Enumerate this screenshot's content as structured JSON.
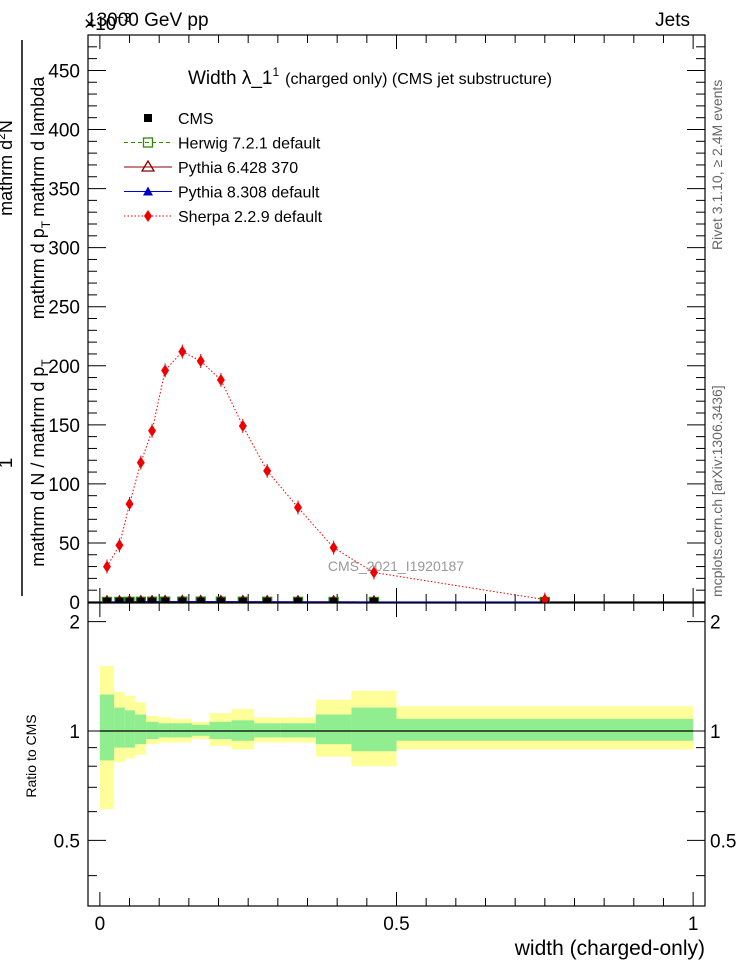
{
  "header": {
    "energy": "13000 GeV pp",
    "process": "Jets",
    "y_exponent": "×10",
    "y_exponent_power": "−3"
  },
  "side_labels": {
    "rivet": "Rivet 3.1.10, ≥ 2.4M events",
    "mcplots": "mcplots.cern.ch [arXiv:1306.3436]"
  },
  "main": {
    "title": "Width λ_1",
    "title_sup": "1",
    "title_suffix": "(charged only) (CMS jet substructure)",
    "ylabel_numerator": "1",
    "ylabel_denominator": "mathrm d N / mathrm d p",
    "ylabel_den_sub": "T",
    "ylabel_upper": "mathrm d",
    "ylabel_upper_sup": "2",
    "ylabel_upper_mid": "N",
    "ylabel_upper_line2": "mathrm d p",
    "ylabel_upper_line2_sub": "T",
    "ylabel_upper_line2_tail": "mathrm d lambda",
    "watermark": "CMS_2021_I1920187",
    "legend": [
      {
        "label": "CMS",
        "color": "#000000",
        "marker": "filled-square",
        "line": "none"
      },
      {
        "label": "Herwig 7.2.1 default",
        "color": "#2e8b00",
        "marker": "open-square",
        "line": "dashed"
      },
      {
        "label": "Pythia 6.428 370",
        "color": "#8b0000",
        "marker": "open-triangle",
        "line": "solid"
      },
      {
        "label": "Pythia 8.308 default",
        "color": "#0000cc",
        "marker": "filled-triangle",
        "line": "solid"
      },
      {
        "label": "Sherpa 2.2.9 default",
        "color": "#ee0000",
        "marker": "filled-diamond",
        "line": "dotted"
      }
    ]
  },
  "ratio": {
    "ylabel": "Ratio to CMS",
    "band_inner_color": "#90ee90",
    "band_outer_color": "#ffff99"
  },
  "xlabel": "width (charged-only)",
  "chart_data": [
    {
      "type": "line",
      "panel": "main",
      "xlim": [
        -0.02,
        1.02
      ],
      "ylim": [
        0,
        480
      ],
      "y_scale_note": "×10^-3",
      "xticks": [
        0,
        0.5,
        1
      ],
      "xtick_labels": [
        "0",
        "0.5",
        "1"
      ],
      "yticks": [
        0,
        50,
        100,
        150,
        200,
        250,
        300,
        350,
        400,
        450
      ],
      "ytick_labels": [
        "0",
        "50",
        "100",
        "150",
        "200",
        "250",
        "300",
        "350",
        "400",
        "450"
      ],
      "series": [
        {
          "name": "Sherpa 2.2.9 default",
          "x": [
            0.012,
            0.033,
            0.05,
            0.069,
            0.088,
            0.11,
            0.139,
            0.17,
            0.204,
            0.241,
            0.282,
            0.334,
            0.394,
            0.462,
            0.75
          ],
          "y": [
            30,
            48,
            83,
            118,
            145,
            196,
            212,
            204,
            188,
            149,
            111,
            80,
            46,
            25,
            2
          ]
        },
        {
          "name": "CMS",
          "x": [
            0.012,
            0.033,
            0.05,
            0.069,
            0.088,
            0.11,
            0.139,
            0.17,
            0.204,
            0.241,
            0.282,
            0.334,
            0.394,
            0.462,
            0.75
          ],
          "y": [
            0.05,
            0.08,
            0.13,
            0.18,
            0.22,
            0.29,
            0.31,
            0.3,
            0.28,
            0.22,
            0.16,
            0.12,
            0.07,
            0.04,
            0.003
          ]
        },
        {
          "name": "Herwig 7.2.1 default",
          "x": [
            0.012,
            0.033,
            0.05,
            0.069,
            0.088,
            0.11,
            0.139,
            0.17,
            0.204,
            0.241,
            0.282,
            0.334,
            0.394,
            0.462,
            0.75
          ],
          "y": [
            0.05,
            0.08,
            0.13,
            0.18,
            0.22,
            0.29,
            0.31,
            0.3,
            0.28,
            0.22,
            0.16,
            0.12,
            0.07,
            0.04,
            0.003
          ]
        },
        {
          "name": "Pythia 6.428 370",
          "x": [
            0.012,
            0.033,
            0.05,
            0.069,
            0.088,
            0.11,
            0.139,
            0.17,
            0.204,
            0.241,
            0.282,
            0.334,
            0.394,
            0.462,
            0.75
          ],
          "y": [
            0.05,
            0.08,
            0.13,
            0.18,
            0.22,
            0.29,
            0.31,
            0.3,
            0.28,
            0.22,
            0.16,
            0.12,
            0.07,
            0.04,
            0.003
          ]
        },
        {
          "name": "Pythia 8.308 default",
          "x": [
            0.012,
            0.033,
            0.05,
            0.069,
            0.088,
            0.11,
            0.139,
            0.17,
            0.204,
            0.241,
            0.282,
            0.334,
            0.394,
            0.462,
            0.75
          ],
          "y": [
            0.05,
            0.08,
            0.13,
            0.18,
            0.22,
            0.29,
            0.31,
            0.3,
            0.28,
            0.22,
            0.16,
            0.12,
            0.07,
            0.04,
            0.003
          ]
        }
      ]
    },
    {
      "type": "area",
      "panel": "ratio",
      "xlim": [
        -0.02,
        1.02
      ],
      "ylim": [
        0.33,
        2.25
      ],
      "yticks": [
        0.5,
        1,
        2
      ],
      "ytick_labels": [
        "0.5",
        "1",
        "2"
      ],
      "reference_line": 1,
      "bins": [
        {
          "x0": 0.0,
          "x1": 0.024,
          "inner": [
            0.83,
            1.26
          ],
          "outer": [
            0.61,
            1.51
          ]
        },
        {
          "x0": 0.024,
          "x1": 0.042,
          "inner": [
            0.9,
            1.16
          ],
          "outer": [
            0.82,
            1.28
          ]
        },
        {
          "x0": 0.042,
          "x1": 0.059,
          "inner": [
            0.9,
            1.14
          ],
          "outer": [
            0.84,
            1.25
          ]
        },
        {
          "x0": 0.059,
          "x1": 0.078,
          "inner": [
            0.92,
            1.11
          ],
          "outer": [
            0.86,
            1.2
          ]
        },
        {
          "x0": 0.078,
          "x1": 0.099,
          "inner": [
            0.95,
            1.06
          ],
          "outer": [
            0.92,
            1.1
          ]
        },
        {
          "x0": 0.099,
          "x1": 0.122,
          "inner": [
            0.96,
            1.05
          ],
          "outer": [
            0.93,
            1.09
          ]
        },
        {
          "x0": 0.122,
          "x1": 0.155,
          "inner": [
            0.96,
            1.05
          ],
          "outer": [
            0.93,
            1.08
          ]
        },
        {
          "x0": 0.155,
          "x1": 0.185,
          "inner": [
            0.97,
            1.04
          ],
          "outer": [
            0.95,
            1.06
          ]
        },
        {
          "x0": 0.185,
          "x1": 0.222,
          "inner": [
            0.95,
            1.06
          ],
          "outer": [
            0.91,
            1.12
          ]
        },
        {
          "x0": 0.222,
          "x1": 0.26,
          "inner": [
            0.94,
            1.07
          ],
          "outer": [
            0.89,
            1.15
          ]
        },
        {
          "x0": 0.26,
          "x1": 0.304,
          "inner": [
            0.96,
            1.05
          ],
          "outer": [
            0.93,
            1.09
          ]
        },
        {
          "x0": 0.304,
          "x1": 0.364,
          "inner": [
            0.96,
            1.05
          ],
          "outer": [
            0.93,
            1.09
          ]
        },
        {
          "x0": 0.364,
          "x1": 0.424,
          "inner": [
            0.92,
            1.11
          ],
          "outer": [
            0.85,
            1.22
          ]
        },
        {
          "x0": 0.424,
          "x1": 0.5,
          "inner": [
            0.88,
            1.16
          ],
          "outer": [
            0.8,
            1.29
          ]
        },
        {
          "x0": 0.5,
          "x1": 1.0,
          "inner": [
            0.94,
            1.08
          ],
          "outer": [
            0.89,
            1.17
          ]
        }
      ]
    }
  ]
}
